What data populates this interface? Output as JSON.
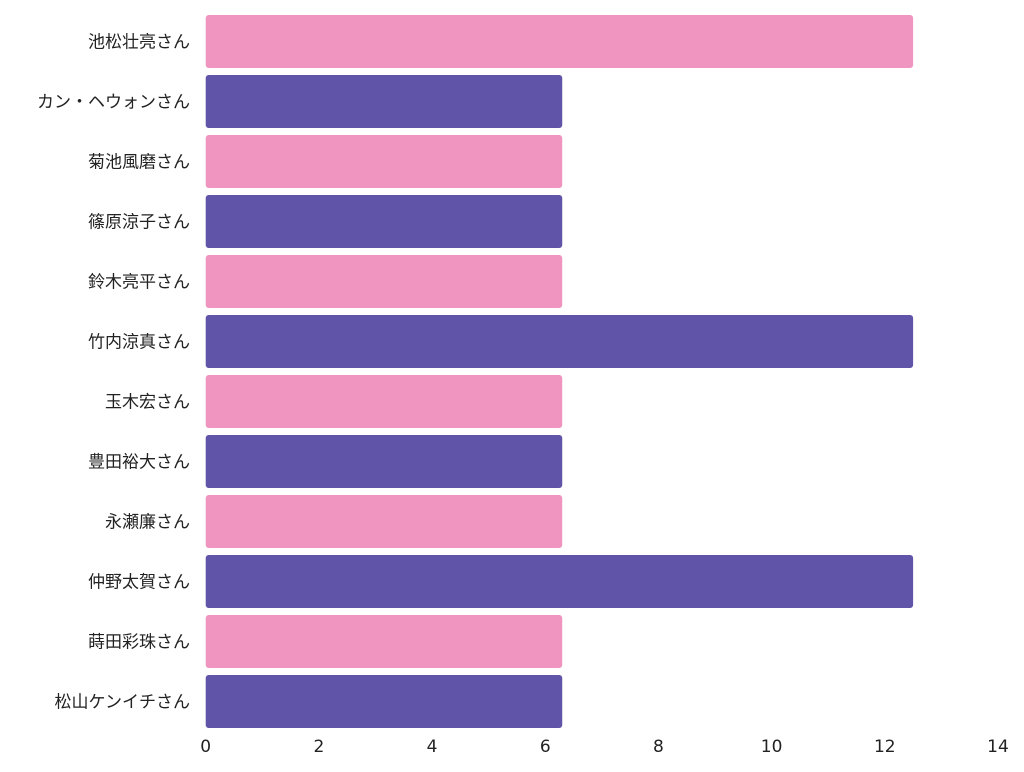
{
  "chart_data": {
    "type": "bar",
    "orientation": "horizontal",
    "categories": [
      "池松壮亮さん",
      "カン・ヘウォンさん",
      "菊池風磨さん",
      "篠原涼子さん",
      "鈴木亮平さん",
      "竹内涼真さん",
      "玉木宏さん",
      "豊田裕大さん",
      "永瀬廉さん",
      "仲野太賀さん",
      "蒔田彩珠さん",
      "松山ケンイチさん"
    ],
    "values": [
      12.5,
      6.3,
      6.3,
      6.3,
      6.3,
      12.5,
      6.3,
      6.3,
      6.3,
      12.5,
      6.3,
      6.3
    ],
    "colors": [
      "#f095c0",
      "#5f54a8"
    ],
    "xlim": [
      0,
      14
    ],
    "xticks": [
      "0",
      "2",
      "4",
      "6",
      "8",
      "10",
      "12",
      "14"
    ],
    "grid": false,
    "title": "",
    "xlabel": "",
    "ylabel": ""
  }
}
